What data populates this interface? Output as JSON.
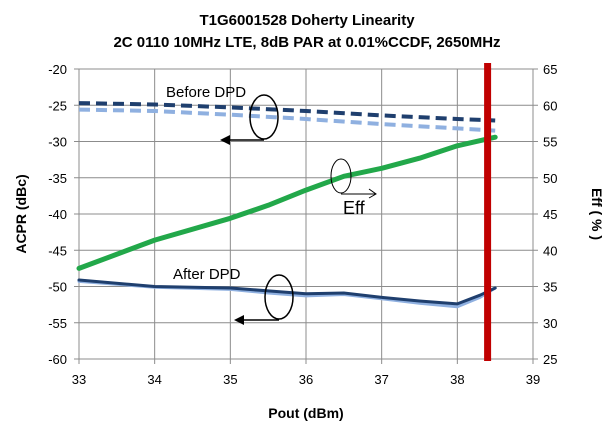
{
  "chart_data": {
    "type": "line",
    "title": "T1G6001528 Doherty Linearity",
    "subtitle": "2C 0110 10MHz LTE, 8dB PAR at 0.01%CCDF, 2650MHz",
    "xlabel": "Pout (dBm)",
    "ylabel": "ACPR (dBc)",
    "y2label": "Eff ( % )",
    "xlim": [
      33,
      39
    ],
    "ylim": [
      -60,
      -20
    ],
    "y2lim": [
      25,
      65
    ],
    "xticks": [
      "33",
      "34",
      "35",
      "36",
      "37",
      "38",
      "39"
    ],
    "yticks": [
      "-20",
      "-25",
      "-30",
      "-35",
      "-40",
      "-45",
      "-50",
      "-55",
      "-60"
    ],
    "y2ticks": [
      "65",
      "60",
      "55",
      "50",
      "45",
      "40",
      "35",
      "30",
      "25"
    ],
    "grid": true,
    "series": [
      {
        "name": "Before DPD (upper)",
        "axis": "left",
        "style": "dashed",
        "color": "#1f3f6e",
        "x": [
          33,
          34,
          35,
          36,
          37,
          38,
          38.5
        ],
        "y": [
          -24.7,
          -24.9,
          -25.3,
          -25.8,
          -26.4,
          -26.9,
          -27.1
        ]
      },
      {
        "name": "Before DPD (lower)",
        "axis": "left",
        "style": "dashed",
        "color": "#8fb0e0",
        "x": [
          33,
          34,
          35,
          36,
          37,
          38,
          38.5
        ],
        "y": [
          -25.6,
          -25.8,
          -26.3,
          -26.9,
          -27.6,
          -28.2,
          -28.5
        ]
      },
      {
        "name": "Eff",
        "axis": "right",
        "style": "solid",
        "color": "#22a84a",
        "x": [
          33,
          34,
          35,
          35.5,
          36,
          36.5,
          37,
          37.5,
          38,
          38.5
        ],
        "y": [
          37.5,
          41.4,
          44.4,
          46.2,
          48.3,
          50.2,
          51.3,
          52.7,
          54.4,
          55.6
        ]
      },
      {
        "name": "After DPD (lower)",
        "axis": "left",
        "style": "solid",
        "color": "#8fb0e0",
        "x": [
          33,
          34,
          35,
          35.5,
          36,
          36.5,
          37,
          37.5,
          38,
          38.3,
          38.5
        ],
        "y": [
          -49.3,
          -50.1,
          -50.4,
          -50.9,
          -51.3,
          -51.1,
          -51.7,
          -52.3,
          -52.8,
          -51.5,
          -50.2
        ]
      },
      {
        "name": "After DPD (upper)",
        "axis": "left",
        "style": "solid",
        "color": "#1f3f6e",
        "x": [
          33,
          34,
          35,
          35.5,
          36,
          36.5,
          37,
          37.5,
          38,
          38.3,
          38.5
        ],
        "y": [
          -49.1,
          -50,
          -50.2,
          -50.6,
          -51,
          -50.9,
          -51.5,
          -52,
          -52.4,
          -51.2,
          -50.2
        ]
      }
    ],
    "marker_line": {
      "x": 38.4,
      "color": "#c00000"
    },
    "annotations": {
      "before": "Before DPD",
      "after": "After DPD",
      "eff": "Eff"
    }
  }
}
